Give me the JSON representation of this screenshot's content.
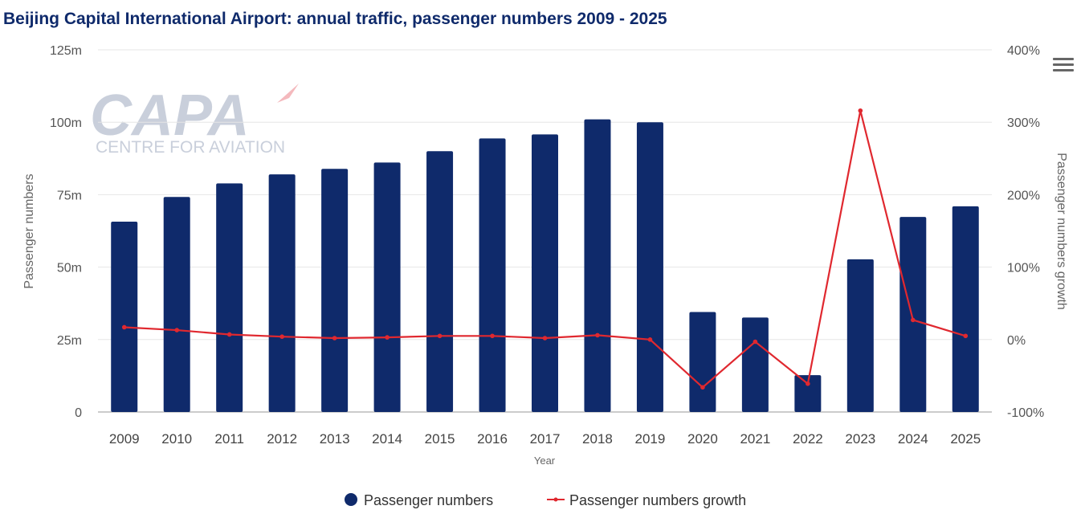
{
  "header": {
    "title": "Beijing Capital International Airport: annual traffic, passenger numbers 2009 - 2025"
  },
  "logo": {
    "name": "CAPA",
    "subtitle": "CENTRE FOR AVIATION"
  },
  "colors": {
    "bar": "#0f2a6b",
    "line": "#e0282f",
    "grid": "#e6e6e6",
    "title": "#0f2a6b"
  },
  "icons": {
    "menu": "hamburger-menu-icon"
  },
  "chart_data": {
    "type": "bar",
    "title": "Beijing Capital International Airport: annual traffic, passenger numbers 2009 - 2025",
    "xlabel": "Year",
    "ylabel": "Passenger numbers",
    "y2label": "Passenger numbers growth",
    "categories": [
      "2009",
      "2010",
      "2011",
      "2012",
      "2013",
      "2014",
      "2015",
      "2016",
      "2017",
      "2018",
      "2019",
      "2020",
      "2021",
      "2022",
      "2023",
      "2024",
      "2025"
    ],
    "ylim": [
      0,
      125
    ],
    "yticks": [
      "0",
      "25m",
      "50m",
      "75m",
      "100m",
      "125m"
    ],
    "y2lim": [
      -100,
      400
    ],
    "y2ticks": [
      "-100%",
      "0%",
      "100%",
      "200%",
      "300%",
      "400%"
    ],
    "grid": true,
    "legend_position": "bottom",
    "series": [
      {
        "name": "Passenger numbers",
        "type": "bar",
        "axis": "left",
        "unit": "m",
        "values": [
          65.7,
          74.2,
          78.9,
          82.0,
          83.9,
          86.1,
          90.0,
          94.4,
          95.8,
          101.0,
          100.0,
          34.5,
          32.6,
          12.7,
          52.7,
          67.3,
          71.0
        ]
      },
      {
        "name": "Passenger numbers growth",
        "type": "line",
        "axis": "right",
        "unit": "%",
        "values": [
          17,
          13,
          7,
          4,
          2,
          3,
          5,
          5,
          2,
          6,
          0,
          -66,
          -3,
          -61,
          316,
          27,
          5
        ]
      }
    ]
  }
}
